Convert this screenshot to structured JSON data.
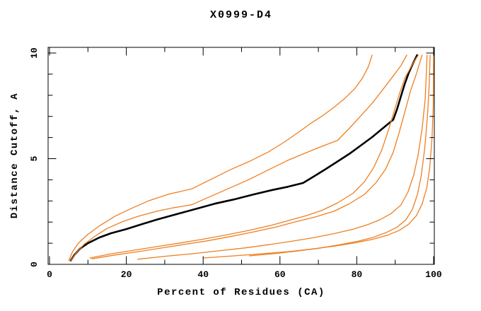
{
  "figure": {
    "background": "#ffffff"
  },
  "chart_data": {
    "type": "line",
    "title": "X0999-D4",
    "xlabel": "Percent of Residues (CA)",
    "ylabel": "Distance Cutoff, A",
    "xlim": [
      0,
      100
    ],
    "ylim": [
      0,
      10
    ],
    "x_major_ticks": [
      0,
      20,
      40,
      60,
      80,
      100
    ],
    "x_minor_ticks": [
      10,
      30,
      50,
      70,
      90
    ],
    "y_major_ticks": [
      0,
      5,
      10
    ],
    "y_minor_ticks": [
      1,
      2,
      3,
      4,
      6,
      7,
      8,
      9
    ],
    "grid": false,
    "legend": "none",
    "frame_style": "closed-box-mirrored-inward-ticks",
    "colors": {
      "highlight_curve": "#000000",
      "other_curves": "#ee7f22",
      "frame": "#000000"
    },
    "series": [
      {
        "name": "black-bold-curve",
        "color": "#000000",
        "width": 2.6,
        "points": [
          [
            5.5,
            0.18
          ],
          [
            6.5,
            0.45
          ],
          [
            8,
            0.75
          ],
          [
            10,
            1.0
          ],
          [
            13,
            1.27
          ],
          [
            16,
            1.47
          ],
          [
            20,
            1.67
          ],
          [
            24,
            1.9
          ],
          [
            28,
            2.12
          ],
          [
            33,
            2.37
          ],
          [
            38,
            2.62
          ],
          [
            43,
            2.87
          ],
          [
            48,
            3.07
          ],
          [
            53,
            3.3
          ],
          [
            58,
            3.52
          ],
          [
            62,
            3.67
          ],
          [
            66,
            3.85
          ],
          [
            69,
            4.18
          ],
          [
            72,
            4.52
          ],
          [
            75,
            4.87
          ],
          [
            78,
            5.22
          ],
          [
            81,
            5.62
          ],
          [
            84,
            6.02
          ],
          [
            87,
            6.47
          ],
          [
            89.5,
            6.85
          ],
          [
            90.5,
            7.35
          ],
          [
            91.5,
            7.95
          ],
          [
            92.5,
            8.55
          ],
          [
            93.5,
            9.05
          ],
          [
            94.5,
            9.45
          ],
          [
            95.7,
            9.9
          ]
        ]
      },
      {
        "name": "orange-curve-1",
        "color": "#ee7f22",
        "width": 1.3,
        "points": [
          [
            5,
            0.18
          ],
          [
            6,
            0.6
          ],
          [
            7.5,
            1.0
          ],
          [
            10,
            1.42
          ],
          [
            13,
            1.82
          ],
          [
            17,
            2.27
          ],
          [
            21,
            2.62
          ],
          [
            26,
            3.02
          ],
          [
            31,
            3.32
          ],
          [
            37,
            3.57
          ],
          [
            42,
            4.02
          ],
          [
            47,
            4.47
          ],
          [
            52,
            4.87
          ],
          [
            57,
            5.32
          ],
          [
            61,
            5.77
          ],
          [
            65,
            6.27
          ],
          [
            68,
            6.67
          ],
          [
            71,
            7.02
          ],
          [
            74,
            7.42
          ],
          [
            77,
            7.87
          ],
          [
            79.5,
            8.32
          ],
          [
            81.5,
            8.82
          ],
          [
            83,
            9.35
          ],
          [
            84,
            9.9
          ]
        ]
      },
      {
        "name": "orange-curve-2",
        "color": "#ee7f22",
        "width": 1.3,
        "points": [
          [
            5.5,
            0.18
          ],
          [
            7,
            0.55
          ],
          [
            9,
            0.95
          ],
          [
            12,
            1.35
          ],
          [
            15,
            1.7
          ],
          [
            19,
            2.02
          ],
          [
            23,
            2.27
          ],
          [
            28,
            2.52
          ],
          [
            32,
            2.67
          ],
          [
            37,
            2.82
          ],
          [
            42,
            3.22
          ],
          [
            47,
            3.62
          ],
          [
            52,
            4.02
          ],
          [
            57,
            4.47
          ],
          [
            62,
            4.92
          ],
          [
            66,
            5.22
          ],
          [
            70,
            5.52
          ],
          [
            75,
            5.87
          ],
          [
            78,
            6.42
          ],
          [
            81,
            7.02
          ],
          [
            84,
            7.62
          ],
          [
            87,
            8.32
          ],
          [
            89.5,
            8.92
          ],
          [
            91.5,
            9.4
          ],
          [
            93,
            9.9
          ]
        ]
      },
      {
        "name": "orange-curve-3",
        "color": "#ee7f22",
        "width": 1.3,
        "points": [
          [
            10.5,
            0.3
          ],
          [
            16,
            0.5
          ],
          [
            22,
            0.67
          ],
          [
            28,
            0.84
          ],
          [
            34,
            1.01
          ],
          [
            40,
            1.19
          ],
          [
            46,
            1.39
          ],
          [
            52,
            1.61
          ],
          [
            58,
            1.86
          ],
          [
            63,
            2.11
          ],
          [
            67,
            2.31
          ],
          [
            71,
            2.56
          ],
          [
            75,
            2.91
          ],
          [
            79,
            3.36
          ],
          [
            82,
            3.91
          ],
          [
            84.5,
            4.61
          ],
          [
            86.5,
            5.41
          ],
          [
            88,
            6.21
          ],
          [
            89.5,
            7.11
          ],
          [
            91,
            8.01
          ],
          [
            92.5,
            8.81
          ],
          [
            94.3,
            9.4
          ],
          [
            96,
            9.9
          ]
        ]
      },
      {
        "name": "orange-curve-4",
        "color": "#ee7f22",
        "width": 1.3,
        "points": [
          [
            11,
            0.26
          ],
          [
            17,
            0.44
          ],
          [
            23,
            0.6
          ],
          [
            29,
            0.77
          ],
          [
            35,
            0.94
          ],
          [
            41,
            1.11
          ],
          [
            47,
            1.31
          ],
          [
            53,
            1.53
          ],
          [
            59,
            1.77
          ],
          [
            64,
            2.01
          ],
          [
            69,
            2.23
          ],
          [
            74,
            2.51
          ],
          [
            78,
            2.86
          ],
          [
            82,
            3.31
          ],
          [
            85,
            3.86
          ],
          [
            87.5,
            4.51
          ],
          [
            89.5,
            5.31
          ],
          [
            91,
            6.21
          ],
          [
            92.5,
            7.21
          ],
          [
            94,
            8.21
          ],
          [
            95.5,
            9.01
          ],
          [
            97,
            9.9
          ]
        ]
      },
      {
        "name": "orange-curve-5",
        "color": "#ee7f22",
        "width": 1.3,
        "points": [
          [
            23,
            0.24
          ],
          [
            30,
            0.38
          ],
          [
            37,
            0.5
          ],
          [
            44,
            0.64
          ],
          [
            51,
            0.78
          ],
          [
            57,
            0.93
          ],
          [
            63,
            1.09
          ],
          [
            69,
            1.27
          ],
          [
            74,
            1.45
          ],
          [
            79,
            1.66
          ],
          [
            83,
            1.89
          ],
          [
            86,
            2.11
          ],
          [
            89,
            2.41
          ],
          [
            91.5,
            2.81
          ],
          [
            93.3,
            3.41
          ],
          [
            94.8,
            4.21
          ],
          [
            96,
            5.21
          ],
          [
            97,
            6.41
          ],
          [
            97.8,
            7.81
          ],
          [
            98.3,
            9.9
          ]
        ]
      },
      {
        "name": "orange-curve-6",
        "color": "#ee7f22",
        "width": 1.3,
        "points": [
          [
            52,
            0.4
          ],
          [
            58,
            0.5
          ],
          [
            64,
            0.62
          ],
          [
            70,
            0.76
          ],
          [
            75,
            0.91
          ],
          [
            80,
            1.08
          ],
          [
            84,
            1.26
          ],
          [
            87.5,
            1.49
          ],
          [
            90.5,
            1.76
          ],
          [
            92.8,
            2.11
          ],
          [
            94.5,
            2.61
          ],
          [
            95.8,
            3.31
          ],
          [
            96.8,
            4.21
          ],
          [
            97.7,
            5.51
          ],
          [
            98.4,
            7.01
          ],
          [
            98.8,
            8.31
          ],
          [
            99.1,
            9.9
          ]
        ]
      },
      {
        "name": "orange-curve-7",
        "color": "#ee7f22",
        "width": 1.3,
        "points": [
          [
            40,
            0.3
          ],
          [
            48,
            0.4
          ],
          [
            55,
            0.5
          ],
          [
            62,
            0.6
          ],
          [
            68,
            0.72
          ],
          [
            74,
            0.86
          ],
          [
            79,
            1.0
          ],
          [
            84,
            1.18
          ],
          [
            88,
            1.38
          ],
          [
            91,
            1.6
          ],
          [
            93.5,
            1.9
          ],
          [
            95.5,
            2.3
          ],
          [
            97,
            2.85
          ],
          [
            98.2,
            3.6
          ],
          [
            99,
            4.6
          ],
          [
            99.6,
            6.0
          ],
          [
            99.9,
            7.5
          ],
          [
            100,
            9.9
          ]
        ]
      }
    ]
  }
}
